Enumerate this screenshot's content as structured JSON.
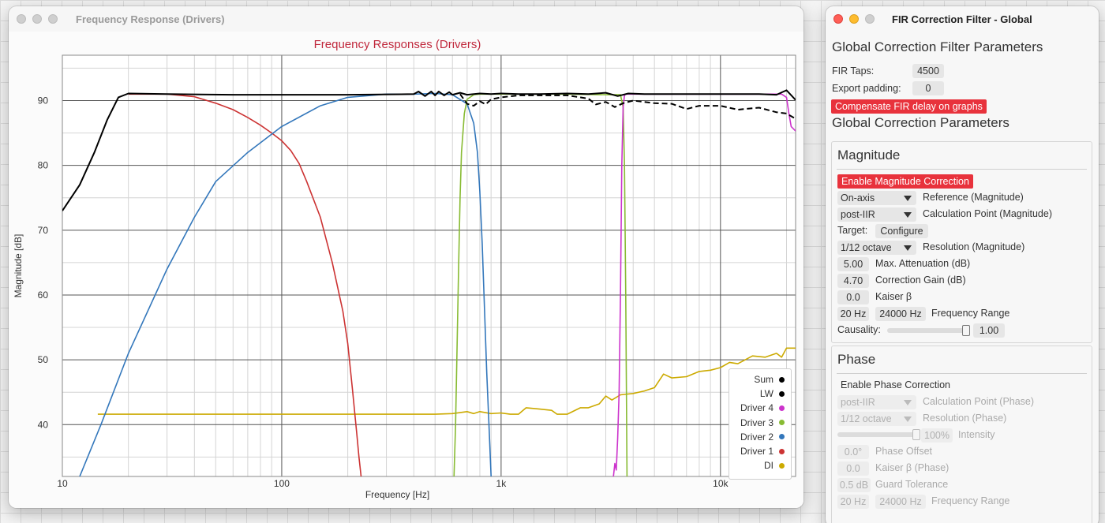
{
  "freq_window": {
    "title": "Frequency Response (Drivers)"
  },
  "chart_data": {
    "type": "line",
    "title": "Frequency Responses (Drivers)",
    "xlabel": "Frequency [Hz]",
    "ylabel": "Magnitude [dB]",
    "x_scale": "log",
    "xlim": [
      10,
      22000
    ],
    "ylim": [
      32,
      97
    ],
    "x_ticks": [
      {
        "v": 10,
        "label": "10"
      },
      {
        "v": 100,
        "label": "100"
      },
      {
        "v": 1000,
        "label": "1k"
      },
      {
        "v": 10000,
        "label": "10k"
      }
    ],
    "y_ticks": [
      40,
      50,
      60,
      70,
      80,
      90
    ],
    "grid": true,
    "legend_position": "bottom-right",
    "series": [
      {
        "name": "Sum",
        "color": "#000000",
        "dash": false,
        "x": [
          10,
          12,
          14,
          16,
          18,
          20,
          30,
          60,
          100,
          200,
          400,
          420,
          450,
          480,
          500,
          520,
          550,
          580,
          600,
          650,
          700,
          800,
          900,
          1000,
          1200,
          1500,
          2000,
          2500,
          3000,
          3400,
          3800,
          4500,
          6000,
          8000,
          10000,
          12000,
          15000,
          18000,
          20000,
          22000
        ],
        "y": [
          73,
          77,
          82,
          87,
          90.5,
          91.1,
          91.0,
          90.9,
          90.9,
          90.9,
          91.0,
          91.4,
          90.7,
          91.4,
          90.8,
          91.4,
          90.8,
          91.3,
          90.9,
          91.2,
          90.9,
          91.1,
          91.0,
          91.1,
          91.0,
          91.0,
          91.1,
          91.0,
          91.2,
          90.7,
          91.1,
          91.0,
          91.0,
          91.0,
          91.0,
          91.0,
          91.0,
          90.9,
          91.6,
          90.1
        ]
      },
      {
        "name": "LW",
        "color": "#000000",
        "dash": true,
        "x": [
          650,
          700,
          750,
          800,
          850,
          900,
          1000,
          1200,
          2000,
          2500,
          2700,
          3000,
          3300,
          3600,
          4000,
          5000,
          6000,
          7000,
          8000,
          10000,
          12000,
          15000,
          18000,
          20000,
          22000
        ],
        "y": [
          91.0,
          89.5,
          89.2,
          89.9,
          89.4,
          90.2,
          90.5,
          90.8,
          90.8,
          90.3,
          89.4,
          89.8,
          89.0,
          89.6,
          90.0,
          89.6,
          89.5,
          88.7,
          89.2,
          89.2,
          88.6,
          88.9,
          88.2,
          88.0,
          87.2
        ]
      },
      {
        "name": "Driver 4",
        "color": "#cc33cc",
        "dash": false,
        "x": [
          3250,
          3300,
          3350,
          3400,
          3450,
          3500,
          3550,
          3600,
          3650,
          3700,
          4000,
          6000,
          10000,
          15000,
          19000,
          20000,
          20500,
          21000,
          22000
        ],
        "y": [
          32,
          34,
          33,
          38,
          45,
          60,
          80,
          89,
          90.8,
          91.0,
          91.0,
          91.0,
          91.0,
          91.0,
          91.0,
          90.5,
          88,
          86,
          85.3
        ]
      },
      {
        "name": "Driver 3",
        "color": "#88bb33",
        "dash": false,
        "x": [
          610,
          620,
          630,
          640,
          650,
          660,
          680,
          700,
          750,
          800,
          1000,
          2000,
          3000,
          3500,
          3600,
          3650,
          3700,
          3750
        ],
        "y": [
          32,
          40,
          52,
          64,
          75,
          82,
          88,
          90.2,
          90.9,
          91.0,
          91.0,
          91.0,
          90.9,
          90.9,
          89,
          80,
          60,
          32
        ]
      },
      {
        "name": "Driver 2",
        "color": "#3377bb",
        "dash": false,
        "x": [
          12,
          15,
          20,
          30,
          40,
          50,
          70,
          100,
          150,
          200,
          300,
          400,
          500,
          600,
          700,
          750,
          780,
          800,
          820,
          840,
          860,
          880,
          900
        ],
        "y": [
          32,
          40,
          51,
          64,
          72,
          77.5,
          82,
          86,
          89.2,
          90.5,
          91.0,
          91.0,
          91.1,
          90.9,
          89.5,
          86.5,
          82,
          76,
          68,
          58,
          48,
          40,
          32
        ]
      },
      {
        "name": "Driver 1",
        "color": "#cc3333",
        "dash": false,
        "x": [
          20,
          30,
          40,
          50,
          60,
          70,
          80,
          90,
          100,
          110,
          120,
          130,
          150,
          170,
          190,
          200,
          210,
          220,
          225,
          230
        ],
        "y": [
          91.0,
          91.0,
          90.6,
          89.6,
          88.6,
          87.4,
          86.2,
          85.0,
          83.8,
          82.3,
          80.3,
          77.5,
          72.0,
          65.0,
          57.5,
          52.5,
          45.5,
          38.5,
          35.0,
          32
        ]
      },
      {
        "name": "DI",
        "color": "#ccaa00",
        "dash": false,
        "x": [
          14.5,
          100,
          500,
          600,
          700,
          750,
          800,
          900,
          1000,
          1100,
          1200,
          1300,
          1500,
          1700,
          1800,
          2000,
          2300,
          2500,
          2800,
          3000,
          3200,
          3500,
          4000,
          4500,
          5000,
          5500,
          6000,
          7000,
          8000,
          9000,
          10000,
          11000,
          12000,
          14000,
          16000,
          18000,
          19000,
          20000,
          22000
        ],
        "y": [
          41.6,
          41.6,
          41.6,
          41.7,
          42.0,
          41.7,
          42.0,
          41.7,
          41.8,
          41.6,
          41.6,
          42.6,
          42.4,
          42.2,
          41.6,
          41.6,
          42.6,
          42.6,
          43.2,
          44.4,
          43.8,
          44.6,
          44.8,
          45.2,
          45.7,
          47.8,
          47.2,
          47.4,
          48.2,
          48.4,
          48.8,
          49.6,
          49.4,
          50.6,
          50.4,
          51.0,
          50.4,
          51.8,
          51.8
        ]
      }
    ]
  },
  "fir_window": {
    "title": "FIR Correction Filter - Global",
    "heading_global_filter": "Global Correction Filter Parameters",
    "fir_taps_label": "FIR Taps:",
    "fir_taps_value": "4500",
    "export_padding_label": "Export padding:",
    "export_padding_value": "0",
    "compensate_button": "Compensate FIR delay on graphs",
    "heading_global_params": "Global Correction Parameters",
    "magnitude": {
      "title": "Magnitude",
      "enable_button": "Enable Magnitude Correction",
      "reference_value": "On-axis",
      "reference_label": "Reference (Magnitude)",
      "calc_point_value": "post-IIR",
      "calc_point_label": "Calculation Point (Magnitude)",
      "target_label": "Target:",
      "configure_button": "Configure",
      "resolution_value": "1/12 octave",
      "resolution_label": "Resolution (Magnitude)",
      "max_atten_value": "5.00",
      "max_atten_label": "Max. Attenuation (dB)",
      "gain_value": "4.70",
      "gain_label": "Correction Gain (dB)",
      "kaiser_value": "0.0",
      "kaiser_label": "Kaiser β",
      "freq_low": "20 Hz",
      "freq_high": "24000 Hz",
      "freq_label": "Frequency Range",
      "causality_label": "Causality:",
      "causality_value": "1.00",
      "causality_level": 1.0
    },
    "phase": {
      "title": "Phase",
      "enable_label": "Enable Phase Correction",
      "calc_point_value": "post-IIR",
      "calc_point_label": "Calculation Point (Phase)",
      "resolution_value": "1/12 octave",
      "resolution_label": "Resolution (Phase)",
      "intensity_value": "100%",
      "intensity_label": "Intensity",
      "intensity_level": 1.0,
      "offset_value": "0.0°",
      "offset_label": "Phase Offset",
      "kaiser_value": "0.0",
      "kaiser_label": "Kaiser β (Phase)",
      "guard_value": "0.5 dB",
      "guard_label": "Guard Tolerance",
      "freq_low": "20 Hz",
      "freq_high": "24000 Hz",
      "freq_label": "Frequency Range"
    }
  }
}
